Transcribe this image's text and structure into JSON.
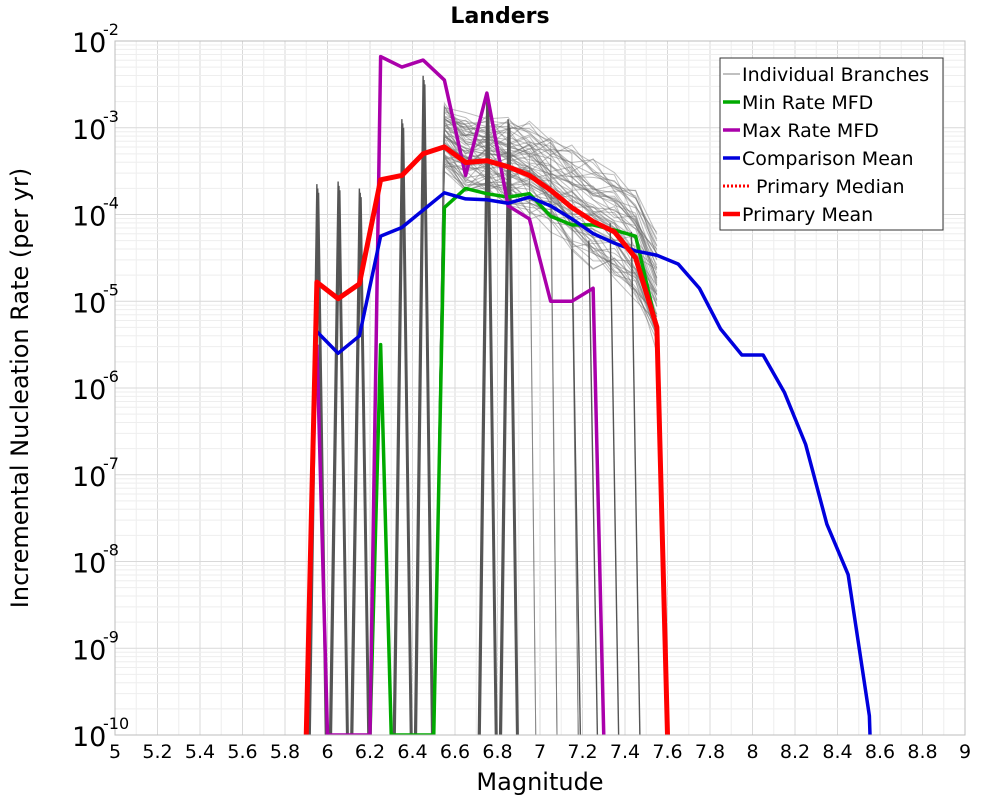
{
  "chart_data": {
    "type": "line",
    "title": "Landers",
    "xlabel": "Magnitude",
    "ylabel": "Incremental Nucleation Rate (per yr)",
    "xlim": [
      5,
      9
    ],
    "ylim_log10": [
      -10,
      -2
    ],
    "x_ticks": [
      "5",
      "5.2",
      "5.4",
      "5.6",
      "5.8",
      "6",
      "6.2",
      "6.4",
      "6.6",
      "6.8",
      "7",
      "7.2",
      "7.4",
      "7.6",
      "7.8",
      "8",
      "8.2",
      "8.4",
      "8.6",
      "8.8",
      "9"
    ],
    "y_ticks": [
      {
        "base": "10",
        "exp": "-10"
      },
      {
        "base": "10",
        "exp": "-9"
      },
      {
        "base": "10",
        "exp": "-8"
      },
      {
        "base": "10",
        "exp": "-7"
      },
      {
        "base": "10",
        "exp": "-6"
      },
      {
        "base": "10",
        "exp": "-5"
      },
      {
        "base": "10",
        "exp": "-4"
      },
      {
        "base": "10",
        "exp": "-3"
      },
      {
        "base": "10",
        "exp": "-2"
      }
    ],
    "grid": true,
    "legend_position": "top-right",
    "legend": [
      {
        "label": "Individual Branches",
        "color": "#808080",
        "style": "thin"
      },
      {
        "label": "Min Rate MFD",
        "color": "#00aa00",
        "style": "solid"
      },
      {
        "label": "Max Rate MFD",
        "color": "#aa00aa",
        "style": "solid"
      },
      {
        "label": "Comparison Mean",
        "color": "#0000dd",
        "style": "solid"
      },
      {
        "label": "Primary Median",
        "color": "#ff0000",
        "style": "dotted"
      },
      {
        "label": "Primary Mean",
        "color": "#ff0000",
        "style": "thick"
      }
    ],
    "series": [
      {
        "name": "Comparison Mean",
        "color": "#0000dd",
        "points": [
          [
            5.95,
            -5.35
          ],
          [
            6.05,
            -5.6
          ],
          [
            6.15,
            -5.4
          ],
          [
            6.25,
            -4.25
          ],
          [
            6.35,
            -4.15
          ],
          [
            6.45,
            -3.95
          ],
          [
            6.55,
            -3.75
          ],
          [
            6.65,
            -3.82
          ],
          [
            6.75,
            -3.83
          ],
          [
            6.85,
            -3.87
          ],
          [
            6.95,
            -3.8
          ],
          [
            7.05,
            -3.9
          ],
          [
            7.15,
            -4.05
          ],
          [
            7.25,
            -4.22
          ],
          [
            7.35,
            -4.33
          ],
          [
            7.45,
            -4.42
          ],
          [
            7.55,
            -4.47
          ],
          [
            7.65,
            -4.57
          ],
          [
            7.75,
            -4.85
          ],
          [
            7.85,
            -5.32
          ],
          [
            7.95,
            -5.62
          ],
          [
            8.05,
            -5.62
          ],
          [
            8.15,
            -6.05
          ],
          [
            8.25,
            -6.65
          ],
          [
            8.35,
            -7.57
          ],
          [
            8.45,
            -8.15
          ],
          [
            8.55,
            -9.78
          ],
          [
            8.553,
            -10
          ]
        ]
      },
      {
        "name": "Primary Mean",
        "color": "#ff0000",
        "points": [
          [
            5.9,
            -10
          ],
          [
            5.95,
            -4.78
          ],
          [
            6.05,
            -4.97
          ],
          [
            6.15,
            -4.8
          ],
          [
            6.25,
            -3.6
          ],
          [
            6.35,
            -3.55
          ],
          [
            6.45,
            -3.3
          ],
          [
            6.55,
            -3.22
          ],
          [
            6.65,
            -3.4
          ],
          [
            6.75,
            -3.38
          ],
          [
            6.85,
            -3.45
          ],
          [
            6.95,
            -3.55
          ],
          [
            7.05,
            -3.72
          ],
          [
            7.15,
            -3.92
          ],
          [
            7.25,
            -4.08
          ],
          [
            7.35,
            -4.2
          ],
          [
            7.45,
            -4.5
          ],
          [
            7.55,
            -5.3
          ],
          [
            7.6,
            -10
          ]
        ]
      },
      {
        "name": "Min Rate MFD",
        "color": "#00aa00",
        "points": [
          [
            6.2,
            -10
          ],
          [
            6.25,
            -5.5
          ],
          [
            6.3,
            -10
          ],
          [
            6.5,
            -10
          ],
          [
            6.55,
            -3.92
          ],
          [
            6.65,
            -3.7
          ],
          [
            6.75,
            -3.76
          ],
          [
            6.85,
            -3.8
          ],
          [
            6.95,
            -3.76
          ],
          [
            7.05,
            -4.02
          ],
          [
            7.15,
            -4.12
          ],
          [
            7.25,
            -4.12
          ],
          [
            7.35,
            -4.18
          ],
          [
            7.45,
            -4.25
          ],
          [
            7.55,
            -5.3
          ]
        ]
      },
      {
        "name": "Max Rate MFD",
        "color": "#aa00aa",
        "points": [
          [
            5.95,
            -5.5
          ],
          [
            6.0,
            -10
          ],
          [
            6.2,
            -10
          ],
          [
            6.25,
            -2.18
          ],
          [
            6.35,
            -2.3
          ],
          [
            6.45,
            -2.22
          ],
          [
            6.55,
            -2.45
          ],
          [
            6.65,
            -3.55
          ],
          [
            6.75,
            -2.6
          ],
          [
            6.85,
            -3.9
          ],
          [
            6.95,
            -4.05
          ],
          [
            7.05,
            -5
          ],
          [
            7.15,
            -5
          ],
          [
            7.25,
            -4.85
          ],
          [
            7.3,
            -10
          ]
        ]
      }
    ]
  }
}
